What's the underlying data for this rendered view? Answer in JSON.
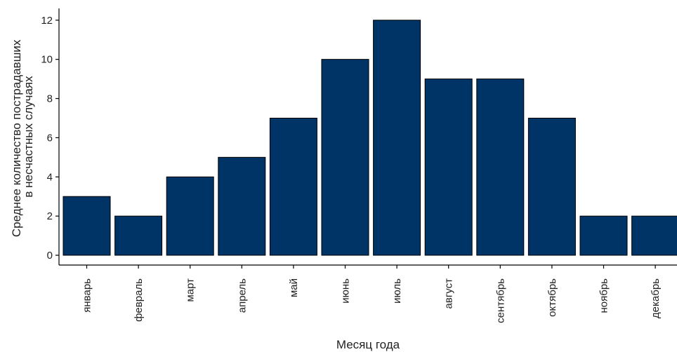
{
  "chart_data": {
    "type": "bar",
    "categories": [
      "январь",
      "февраль",
      "март",
      "апрель",
      "май",
      "июнь",
      "июль",
      "август",
      "сентябрь",
      "октябрь",
      "ноябрь",
      "декабрь"
    ],
    "values": [
      3,
      2,
      4,
      5,
      7,
      10,
      12,
      9,
      9,
      7,
      2,
      2
    ],
    "title": "",
    "xlabel": "Месяц года",
    "ylabel_lines": [
      "Среднее количество пострадавших",
      "в несчастных случаях"
    ],
    "ylim": [
      -0.5,
      12.6
    ],
    "yticks": [
      0,
      2,
      4,
      6,
      8,
      10,
      12
    ],
    "grid": false,
    "colors": {
      "bar": "#003366"
    }
  }
}
